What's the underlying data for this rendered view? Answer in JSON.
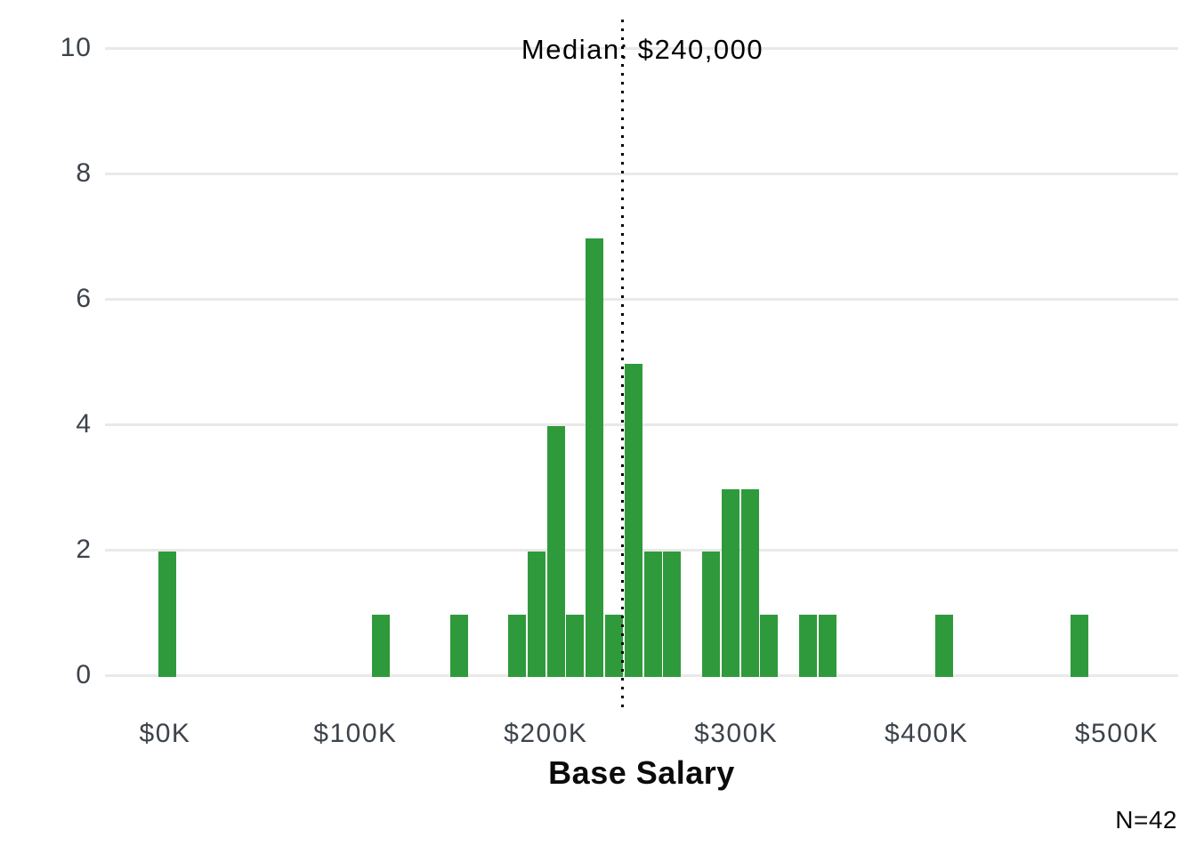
{
  "chart_data": {
    "type": "bar",
    "subtype": "histogram",
    "annotation": "Median: $240,000",
    "median_salary_k": 240,
    "xlabel": "Base Salary",
    "ylabel": "",
    "sample_size_label": "N=42",
    "sample_size": 42,
    "ylim": [
      0,
      10
    ],
    "y_ticks": [
      0,
      2,
      4,
      6,
      8,
      10
    ],
    "x_ticks": [
      {
        "label": "$0K",
        "value_k": 0
      },
      {
        "label": "$100K",
        "value_k": 100
      },
      {
        "label": "$200K",
        "value_k": 200
      },
      {
        "label": "$300K",
        "value_k": 300
      },
      {
        "label": "$400K",
        "value_k": 400
      },
      {
        "label": "$500K",
        "value_k": 500
      }
    ],
    "bin_width_k": 10.2,
    "bars": [
      {
        "center_k": 1.4,
        "count": 2
      },
      {
        "center_k": 113.5,
        "count": 1
      },
      {
        "center_k": 154.3,
        "count": 1
      },
      {
        "center_k": 184.9,
        "count": 1
      },
      {
        "center_k": 195.1,
        "count": 2
      },
      {
        "center_k": 205.3,
        "count": 4
      },
      {
        "center_k": 215.5,
        "count": 1
      },
      {
        "center_k": 225.7,
        "count": 7
      },
      {
        "center_k": 235.9,
        "count": 1
      },
      {
        "center_k": 246.1,
        "count": 5
      },
      {
        "center_k": 256.3,
        "count": 2
      },
      {
        "center_k": 266.4,
        "count": 2
      },
      {
        "center_k": 286.8,
        "count": 2
      },
      {
        "center_k": 297.0,
        "count": 3
      },
      {
        "center_k": 307.2,
        "count": 3
      },
      {
        "center_k": 317.4,
        "count": 1
      },
      {
        "center_k": 337.8,
        "count": 1
      },
      {
        "center_k": 348.0,
        "count": 1
      },
      {
        "center_k": 409.1,
        "count": 1
      },
      {
        "center_k": 480.5,
        "count": 1
      }
    ],
    "grid": "horizontal-only",
    "legend": "none",
    "colors": {
      "bar": "#2f9a3c",
      "gridline": "#e9e9e9",
      "tick_label": "#3d434b",
      "text": "#0b0b0b",
      "median_line": "#000000",
      "background": "#ffffff"
    }
  }
}
